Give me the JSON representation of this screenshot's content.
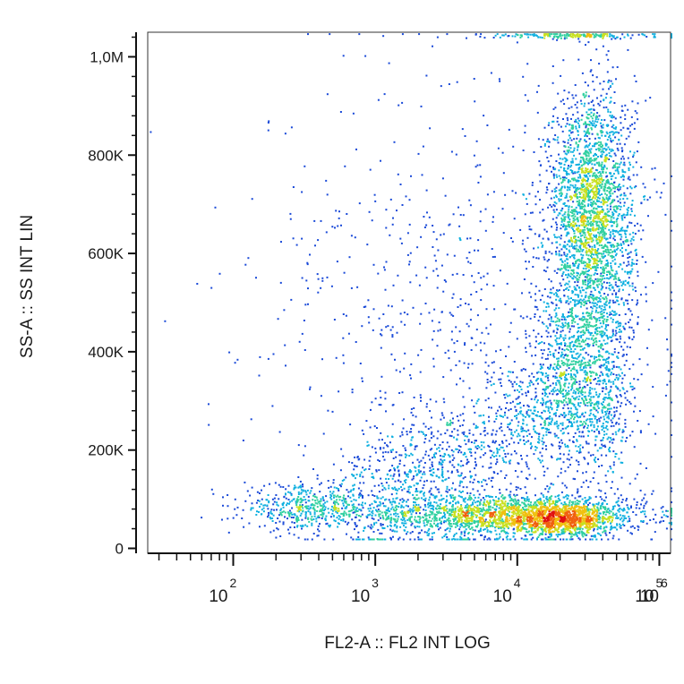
{
  "chart_data": {
    "type": "scatter",
    "title": "",
    "xlabel": "FL2-A :: FL2 INT LOG",
    "ylabel": "SS-A :: SS INT LIN",
    "x_scale": "log",
    "xlim": [
      25,
      120000
    ],
    "ylim": [
      -10000,
      1050000
    ],
    "x_ticks": [
      {
        "base": "10",
        "exp": "2",
        "value": 100
      },
      {
        "base": "10",
        "exp": "3",
        "value": 1000
      },
      {
        "base": "10",
        "exp": "4",
        "value": 10000
      },
      {
        "base": "10",
        "exp": "5",
        "value": 100000
      },
      {
        "base": "10",
        "exp": "6",
        "value": 1000000
      }
    ],
    "y_ticks": [
      {
        "label": "0",
        "value": 0
      },
      {
        "label": "200K",
        "value": 200000
      },
      {
        "label": "400K",
        "value": 400000
      },
      {
        "label": "600K",
        "value": 600000
      },
      {
        "label": "800K",
        "value": 800000
      },
      {
        "label": "1,0M",
        "value": 1000000
      }
    ],
    "density_colors": [
      "#1a1aa8",
      "#1a4ad8",
      "#10b0e0",
      "#30d0a0",
      "#c8e020",
      "#f0c010",
      "#f06010",
      "#e01010"
    ],
    "populations": [
      {
        "description": "dense low-SS cluster",
        "x_center": 22000,
        "y_center": 60000,
        "x_spread_log": 0.18,
        "y_spread": 18000,
        "share": 0.09
      },
      {
        "description": "low-SS band",
        "x_center": 8000,
        "y_center": 70000,
        "x_spread_log": 0.5,
        "y_spread": 22000,
        "share": 0.22
      },
      {
        "description": "low-FL2 cluster",
        "x_center": 320,
        "y_center": 85000,
        "x_spread_log": 0.22,
        "y_spread": 22000,
        "share": 0.05
      },
      {
        "description": "high-SS column",
        "x_center": 33000,
        "y_center": 680000,
        "x_spread_log": 0.15,
        "y_spread": 130000,
        "share": 0.28
      },
      {
        "description": "mid-SS column",
        "x_center": 30000,
        "y_center": 350000,
        "x_spread_log": 0.18,
        "y_spread": 110000,
        "share": 0.13
      },
      {
        "description": "diagonal transition",
        "x_center": 3000,
        "y_center": 300000,
        "x_spread_log": 0.55,
        "y_spread": 130000,
        "share": 0.12
      },
      {
        "description": "top saturation",
        "x_center": 25000,
        "y_center": 1045000,
        "x_spread_log": 0.3,
        "y_spread": 3000,
        "share": 0.02
      },
      {
        "description": "sparse scatter",
        "x_center": 4000,
        "y_center": 450000,
        "x_spread_log": 0.7,
        "y_spread": 280000,
        "share": 0.09
      }
    ]
  }
}
